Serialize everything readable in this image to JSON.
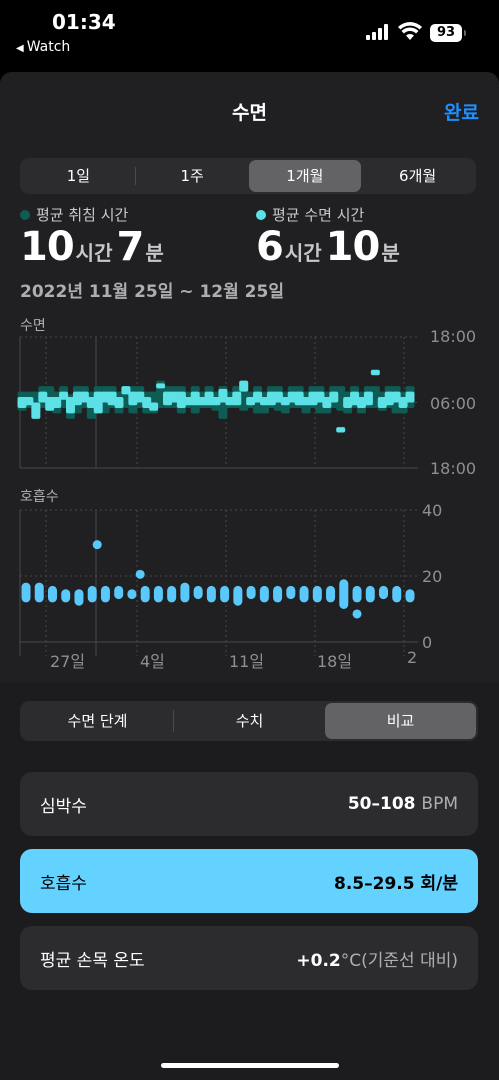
{
  "status_bar": {
    "time": "01:34",
    "back_app": "Watch",
    "battery": "93"
  },
  "nav": {
    "title": "수면",
    "done": "완료"
  },
  "period_tabs": [
    "1일",
    "1주",
    "1개월",
    "6개월"
  ],
  "period_selected": 2,
  "summary": {
    "bed_label": "평균 취침 시간",
    "bed_hours": "10",
    "bed_hours_unit": "시간",
    "bed_minutes": "7",
    "bed_minutes_unit": "분",
    "sleep_label": "평균 수면 시간",
    "sleep_hours": "6",
    "sleep_hours_unit": "시간",
    "sleep_minutes": "10",
    "sleep_minutes_unit": "분",
    "date_range": "2022년 11월 25일 ~ 12월 25일"
  },
  "colors": {
    "bed": "#0f5c55",
    "sleep": "#5ce1e6",
    "resp": "#5ac8fa",
    "accent": "#1e90ff"
  },
  "sleep_chart": {
    "label": "수면",
    "y_ticks": [
      "18:00",
      "06:00",
      "18:00"
    ]
  },
  "resp_chart": {
    "label": "호흡수",
    "y_ticks": [
      "40",
      "20",
      "0"
    ]
  },
  "x_labels": [
    "27일",
    "4일",
    "11일",
    "18일",
    "2"
  ],
  "chart_data": [
    {
      "type": "bar",
      "title": "수면",
      "note": "sleep-time range bars per night (hours, 18:00 = 0, 06:00 = 12, next 18:00 = 24)",
      "series": [
        {
          "name": "평균 취침 시간",
          "ranges": [
            [
              10,
              13.5
            ],
            [
              10,
              13
            ],
            [
              10,
              14
            ],
            [
              9,
              13
            ],
            [
              9,
              13.5
            ],
            [
              10,
              14
            ],
            [
              9,
              13
            ],
            [
              10.5,
              15
            ],
            [
              9,
              14
            ],
            [
              9,
              13
            ],
            [
              10,
              15
            ],
            [
              9,
              14
            ],
            [
              9,
              14
            ],
            [
              9,
              13
            ],
            [
              10,
              14
            ],
            [
              9,
              13
            ],
            [
              9,
              14
            ],
            [
              9,
              13
            ],
            [
              10,
              14
            ],
            [
              10,
              14
            ],
            [
              8,
              13
            ],
            [
              9,
              13
            ],
            [
              9,
              13
            ],
            [
              9,
              14
            ],
            [
              10,
              13
            ],
            [
              9,
              14
            ],
            [
              10,
              13
            ],
            [
              9,
              13
            ],
            [
              10,
              13.5
            ],
            [
              9,
              15
            ],
            [
              10,
              13
            ],
            [
              9,
              13
            ],
            [
              8,
              13.5
            ],
            [
              10,
              13
            ],
            [
              9,
              14
            ],
            [
              10,
              14
            ],
            [
              9,
              13
            ],
            [
              9,
              13.5
            ],
            [
              10,
              14
            ],
            [
              9,
              13
            ],
            [
              9,
              13
            ],
            [
              10,
              14
            ],
            [
              9,
              13
            ],
            [
              9,
              14
            ],
            [
              10,
              14
            ],
            [
              9,
              13
            ],
            [
              9,
              13.5
            ],
            [
              10,
              14
            ],
            [
              9,
              13
            ],
            [
              10,
              14
            ],
            [
              9,
              13
            ],
            [
              9,
              13
            ],
            [
              10,
              13.5
            ],
            [
              9,
              13
            ],
            [
              9,
              14
            ],
            [
              10,
              14
            ],
            [
              9,
              13
            ]
          ]
        },
        {
          "name": "평균 수면 시간",
          "ranges": [
            [
              11,
              13
            ],
            [
              11,
              12.5
            ],
            [
              12,
              15
            ],
            [
              10,
              12
            ],
            [
              11,
              13.5
            ],
            [
              11,
              13
            ],
            [
              10,
              11.5
            ],
            [
              11,
              14
            ],
            [
              10,
              12.5
            ],
            [
              10,
              12
            ],
            [
              11,
              13
            ],
            [
              10,
              14
            ],
            [
              10,
              12
            ],
            [
              10,
              12.5
            ],
            [
              11,
              13
            ],
            [
              9,
              10.5
            ],
            [
              10,
              12.5
            ],
            [
              10,
              12
            ],
            [
              11,
              13
            ],
            [
              12,
              13.5
            ],
            [
              8.5,
              9
            ],
            [
              10,
              12.5
            ],
            [
              10,
              12
            ],
            [
              10,
              13
            ],
            [
              11,
              12.5
            ],
            [
              10,
              12.5
            ],
            [
              11,
              12.5
            ],
            [
              10,
              12.5
            ],
            [
              11,
              12.5
            ],
            [
              9.5,
              12
            ],
            [
              11,
              12.5
            ],
            [
              10,
              12.5
            ],
            [
              8,
              10
            ],
            [
              11,
              12.5
            ],
            [
              10,
              12
            ],
            [
              11,
              12.5
            ],
            [
              10,
              12.5
            ],
            [
              10,
              12
            ],
            [
              11,
              12.5
            ],
            [
              10,
              12
            ],
            [
              10,
              12.5
            ],
            [
              11,
              12.5
            ],
            [
              10,
              12.5
            ],
            [
              10,
              12
            ],
            [
              11,
              13
            ],
            [
              10,
              12
            ],
            [
              16.5,
              17.5
            ],
            [
              11,
              13
            ],
            [
              10,
              12.5
            ],
            [
              11,
              13
            ],
            [
              10,
              12.5
            ],
            [
              6,
              7
            ],
            [
              11,
              13
            ],
            [
              10,
              12.5
            ],
            [
              10,
              12
            ],
            [
              11,
              13
            ],
            [
              10,
              12
            ]
          ]
        }
      ],
      "y_ticks": [
        "18:00",
        "06:00",
        "18:00"
      ]
    },
    {
      "type": "bar",
      "title": "호흡수",
      "ylim": [
        0,
        40
      ],
      "series": [
        {
          "name": "호흡수",
          "ranges": [
            [
              12,
              18
            ],
            [
              12,
              18
            ],
            [
              12,
              17
            ],
            [
              12,
              16
            ],
            [
              11,
              16
            ],
            [
              12,
              17
            ],
            [
              12,
              17
            ],
            [
              13,
              17
            ],
            [
              13,
              16
            ],
            [
              12,
              17
            ],
            [
              12,
              17
            ],
            [
              12,
              17
            ],
            [
              12,
              18
            ],
            [
              13,
              17
            ],
            [
              12,
              17
            ],
            [
              12,
              17
            ],
            [
              11,
              17
            ],
            [
              13,
              17
            ],
            [
              12,
              17
            ],
            [
              12,
              17
            ],
            [
              13,
              17
            ],
            [
              12,
              17
            ],
            [
              12,
              17
            ],
            [
              12,
              17
            ],
            [
              10,
              19
            ],
            [
              12,
              17
            ],
            [
              12,
              17
            ],
            [
              13,
              17
            ],
            [
              12,
              17
            ],
            [
              12,
              16
            ]
          ],
          "outliers": [
            [
              5,
              29.5
            ],
            [
              9,
              20.5
            ],
            [
              25,
              8.5
            ]
          ]
        }
      ]
    }
  ],
  "view_tabs": [
    "수면 단계",
    "수치",
    "비교"
  ],
  "view_selected": 2,
  "metrics": [
    {
      "label": "심박수",
      "value": "50–108",
      "unit": "BPM"
    },
    {
      "label": "호흡수",
      "value": "8.5–29.5",
      "unit": "회/분"
    },
    {
      "label": "평균 손목 온도",
      "value": "+0.2",
      "unit": "°C(기준선 대비)"
    }
  ]
}
